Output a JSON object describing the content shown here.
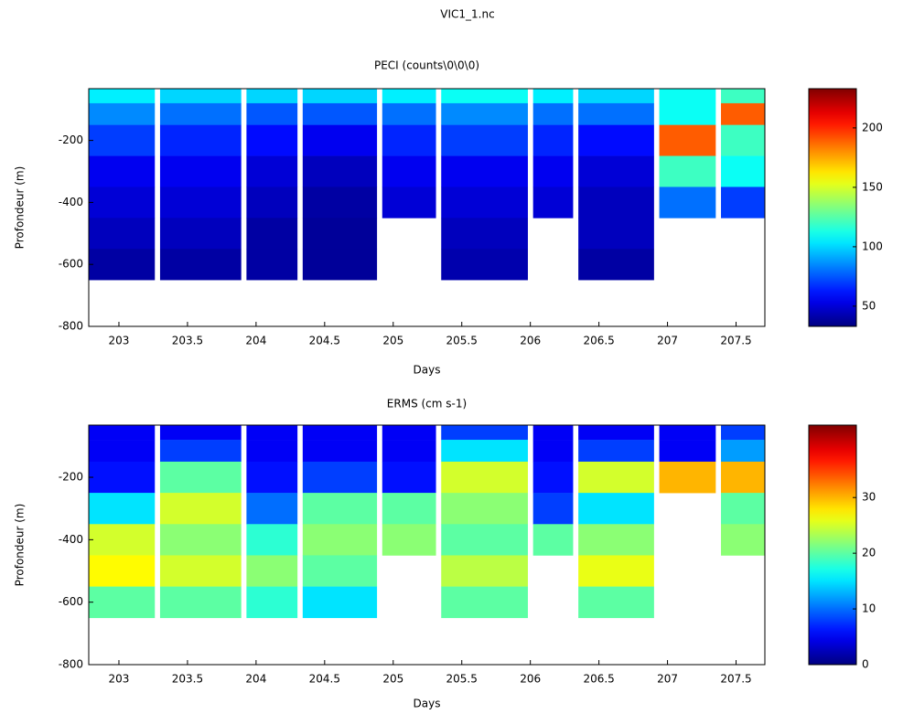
{
  "title": "VIC1_1.nc",
  "chart_data": [
    {
      "type": "heatmap",
      "title": "PECI (counts\\0\\0\\0)",
      "x_label": "Days",
      "y_label": "Profondeur (m)",
      "colormap": "jet",
      "x_bins": [
        202.78,
        203.26,
        203.3,
        203.89,
        203.93,
        204.3,
        204.34,
        204.88,
        204.92,
        205.31,
        205.35,
        205.98,
        206.02,
        206.31,
        206.35,
        206.9,
        206.94,
        207.35,
        207.39,
        207.71
      ],
      "y_bins": [
        -33,
        -80,
        -150,
        -250,
        -350,
        -450,
        -550,
        -650
      ],
      "z": [
        [
          105,
          null,
          100,
          null,
          100,
          null,
          100,
          null,
          105,
          null,
          110,
          null,
          105,
          null,
          100,
          null,
          110,
          null,
          120
        ],
        [
          85,
          null,
          80,
          null,
          75,
          null,
          75,
          null,
          80,
          null,
          85,
          null,
          80,
          null,
          80,
          null,
          110,
          null,
          190
        ],
        [
          70,
          null,
          65,
          null,
          60,
          null,
          55,
          null,
          65,
          null,
          70,
          null,
          65,
          null,
          60,
          null,
          190,
          null,
          120
        ],
        [
          55,
          null,
          55,
          null,
          50,
          null,
          45,
          null,
          55,
          null,
          55,
          null,
          55,
          null,
          50,
          null,
          120,
          null,
          110
        ],
        [
          50,
          null,
          50,
          null,
          45,
          null,
          40,
          null,
          50,
          null,
          50,
          null,
          50,
          null,
          45,
          null,
          80,
          null,
          70
        ],
        [
          45,
          null,
          45,
          null,
          40,
          null,
          38,
          null,
          null,
          null,
          45,
          null,
          null,
          null,
          45,
          null,
          null,
          null,
          null
        ],
        [
          40,
          null,
          40,
          null,
          40,
          null,
          38,
          null,
          null,
          null,
          42,
          null,
          null,
          null,
          40,
          null,
          null,
          null,
          null
        ]
      ],
      "xlim": [
        202.78,
        207.71
      ],
      "ylim": [
        -800,
        -33
      ],
      "xticks": [
        203,
        203.5,
        204,
        204.5,
        205,
        205.5,
        206,
        206.5,
        207,
        207.5
      ],
      "yticks": [
        -800,
        -600,
        -400,
        -200
      ],
      "clim": [
        33,
        233
      ],
      "cticks": [
        50,
        100,
        150,
        200
      ]
    },
    {
      "type": "heatmap",
      "title": "ERMS (cm s-1)",
      "x_label": "Days",
      "y_label": "Profondeur (m)",
      "colormap": "jet",
      "x_bins": [
        202.78,
        203.26,
        203.3,
        203.89,
        203.93,
        204.3,
        204.34,
        204.88,
        204.92,
        205.31,
        205.35,
        205.98,
        206.02,
        206.31,
        206.35,
        206.9,
        206.94,
        207.35,
        207.39,
        207.71
      ],
      "y_bins": [
        -33,
        -80,
        -150,
        -250,
        -350,
        -450,
        -550,
        -650
      ],
      "z": [
        [
          5,
          null,
          5,
          null,
          5,
          null,
          5,
          null,
          5,
          null,
          8,
          null,
          5,
          null,
          5,
          null,
          5,
          null,
          8
        ],
        [
          5,
          null,
          8,
          null,
          5,
          null,
          5,
          null,
          5,
          null,
          15,
          null,
          5,
          null,
          8,
          null,
          5,
          null,
          12
        ],
        [
          6,
          null,
          20,
          null,
          6,
          null,
          8,
          null,
          6,
          null,
          25,
          null,
          6,
          null,
          25,
          null,
          30,
          null,
          30
        ],
        [
          15,
          null,
          25,
          null,
          10,
          null,
          20,
          null,
          20,
          null,
          22,
          null,
          8,
          null,
          15,
          null,
          null,
          null,
          20
        ],
        [
          25,
          null,
          22,
          null,
          18,
          null,
          22,
          null,
          22,
          null,
          20,
          null,
          20,
          null,
          22,
          null,
          null,
          null,
          22
        ],
        [
          27,
          null,
          25,
          null,
          22,
          null,
          20,
          null,
          null,
          null,
          24,
          null,
          null,
          null,
          26,
          null,
          null,
          null,
          null
        ],
        [
          20,
          null,
          20,
          null,
          18,
          null,
          15,
          null,
          null,
          null,
          20,
          null,
          null,
          null,
          20,
          null,
          null,
          null,
          null
        ]
      ],
      "xlim": [
        202.78,
        207.71
      ],
      "ylim": [
        -800,
        -33
      ],
      "xticks": [
        203,
        203.5,
        204,
        204.5,
        205,
        205.5,
        206,
        206.5,
        207,
        207.5
      ],
      "yticks": [
        -800,
        -600,
        -400,
        -200
      ],
      "clim": [
        0,
        43
      ],
      "cticks": [
        0,
        10,
        20,
        30
      ]
    }
  ]
}
